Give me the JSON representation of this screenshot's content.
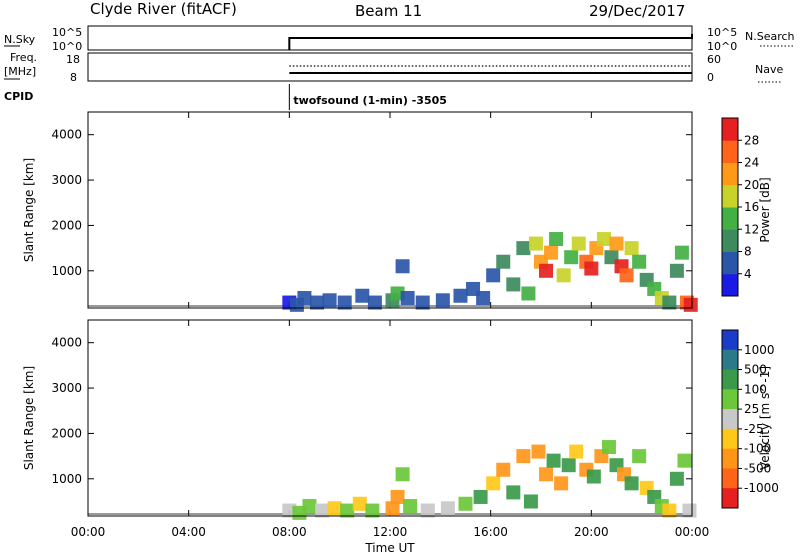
{
  "header": {
    "station": "Clyde River (fitACF)",
    "beam": "Beam 11",
    "date": "29/Dec/2017"
  },
  "summary_panels": {
    "nsky_label": "N.Sky",
    "nsky_ticks": [
      "10^5",
      "10^0"
    ],
    "nsearch_label": "N.Search",
    "nsearch_ticks": [
      "10^5",
      "10^0"
    ],
    "freq_label_1": "Freq.",
    "freq_label_2": "[MHz]",
    "freq_ticks": [
      "18",
      "8"
    ],
    "nave_label": "Nave",
    "nave_ticks": [
      "60",
      "0"
    ],
    "cpid_label": "CPID",
    "cpid_text": "twofsound (1-min) -3505"
  },
  "chart_data": [
    {
      "type": "heatmap",
      "title": "",
      "ylabel": "Slant Range [km]",
      "xlabel": "",
      "ylim": [
        180,
        4500
      ],
      "yticks": [
        "1000",
        "2000",
        "3000",
        "4000"
      ],
      "colorbar": {
        "label": "Power [dB]",
        "ticks": [
          "4",
          "8",
          "12",
          "16",
          "20",
          "24",
          "28"
        ],
        "range": [
          0,
          30
        ],
        "colors": [
          "#1a1ae6",
          "#2a56a8",
          "#3d8a5c",
          "#43b043",
          "#c8d228",
          "#ff9a18",
          "#ff6418",
          "#e62020"
        ]
      },
      "cells": [
        [
          8.0,
          300,
          3
        ],
        [
          8.3,
          250,
          6
        ],
        [
          8.6,
          400,
          5
        ],
        [
          9.1,
          300,
          7
        ],
        [
          9.6,
          350,
          6
        ],
        [
          10.2,
          300,
          5
        ],
        [
          10.9,
          450,
          7
        ],
        [
          11.4,
          300,
          6
        ],
        [
          12.1,
          350,
          10
        ],
        [
          12.3,
          500,
          14
        ],
        [
          12.5,
          1100,
          6
        ],
        [
          12.7,
          400,
          5
        ],
        [
          13.3,
          300,
          6
        ],
        [
          14.1,
          350,
          5
        ],
        [
          14.8,
          450,
          6
        ],
        [
          15.3,
          600,
          7
        ],
        [
          15.7,
          400,
          5
        ],
        [
          16.1,
          900,
          7
        ],
        [
          16.5,
          1200,
          9
        ],
        [
          16.9,
          700,
          10
        ],
        [
          17.3,
          1500,
          8
        ],
        [
          17.5,
          500,
          12
        ],
        [
          17.8,
          1600,
          15
        ],
        [
          18.0,
          1200,
          22
        ],
        [
          18.2,
          1000,
          27
        ],
        [
          18.4,
          1400,
          20
        ],
        [
          18.6,
          1700,
          14
        ],
        [
          18.9,
          900,
          16
        ],
        [
          19.2,
          1300,
          12
        ],
        [
          19.5,
          1600,
          18
        ],
        [
          19.8,
          1200,
          24
        ],
        [
          20.0,
          1050,
          28
        ],
        [
          20.2,
          1500,
          22
        ],
        [
          20.5,
          1700,
          16
        ],
        [
          20.8,
          1300,
          11
        ],
        [
          21.0,
          1600,
          20
        ],
        [
          21.2,
          1100,
          27
        ],
        [
          21.4,
          900,
          24
        ],
        [
          21.6,
          1500,
          17
        ],
        [
          21.9,
          1200,
          12
        ],
        [
          22.2,
          800,
          10
        ],
        [
          22.5,
          600,
          13
        ],
        [
          22.8,
          400,
          18
        ],
        [
          23.1,
          300,
          11
        ],
        [
          23.4,
          1000,
          9
        ],
        [
          23.6,
          1400,
          12
        ],
        [
          23.8,
          300,
          26
        ],
        [
          23.95,
          250,
          28
        ]
      ]
    },
    {
      "type": "heatmap",
      "title": "",
      "ylabel": "Slant Range [km]",
      "xlabel": "Time UT",
      "ylim": [
        180,
        4500
      ],
      "yticks": [
        "1000",
        "2000",
        "3000",
        "4000"
      ],
      "xticks": [
        "00:00",
        "04:00",
        "08:00",
        "12:00",
        "16:00",
        "20:00",
        "00:00"
      ],
      "xlim_hours": [
        0,
        24
      ],
      "colorbar": {
        "label": "Velocity [m s^-1]",
        "ticks": [
          "1000",
          "500",
          "100",
          "25",
          "-25",
          "-100",
          "-500",
          "-1000"
        ],
        "colors": [
          "#1a3cc8",
          "#2a7a8c",
          "#3a9a4a",
          "#6ac83a",
          "#c8c8c8",
          "#ffc818",
          "#ff9618",
          "#ff6418",
          "#e62020"
        ]
      },
      "cells": [
        [
          8.0,
          300,
          20
        ],
        [
          8.4,
          250,
          50
        ],
        [
          8.8,
          400,
          80
        ],
        [
          9.3,
          300,
          20
        ],
        [
          9.8,
          350,
          -30
        ],
        [
          10.3,
          300,
          60
        ],
        [
          10.8,
          450,
          -80
        ],
        [
          11.3,
          300,
          40
        ],
        [
          12.1,
          350,
          -300
        ],
        [
          12.3,
          600,
          -150
        ],
        [
          12.5,
          1100,
          30
        ],
        [
          12.8,
          400,
          70
        ],
        [
          13.5,
          300,
          20
        ],
        [
          14.3,
          350,
          -20
        ],
        [
          15.0,
          450,
          60
        ],
        [
          15.6,
          600,
          200
        ],
        [
          16.1,
          900,
          -100
        ],
        [
          16.5,
          1200,
          -300
        ],
        [
          16.9,
          700,
          300
        ],
        [
          17.3,
          1500,
          -200
        ],
        [
          17.6,
          500,
          400
        ],
        [
          17.9,
          1600,
          -150
        ],
        [
          18.2,
          1100,
          -300
        ],
        [
          18.5,
          1400,
          120
        ],
        [
          18.8,
          900,
          -120
        ],
        [
          19.1,
          1300,
          200
        ],
        [
          19.4,
          1600,
          -90
        ],
        [
          19.8,
          1200,
          -250
        ],
        [
          20.1,
          1050,
          150
        ],
        [
          20.4,
          1500,
          -120
        ],
        [
          20.7,
          1700,
          90
        ],
        [
          21.0,
          1300,
          200
        ],
        [
          21.3,
          1100,
          -200
        ],
        [
          21.6,
          900,
          120
        ],
        [
          21.9,
          1500,
          60
        ],
        [
          22.2,
          800,
          -60
        ],
        [
          22.5,
          600,
          150
        ],
        [
          22.8,
          400,
          30
        ],
        [
          23.1,
          300,
          -40
        ],
        [
          23.4,
          1000,
          180
        ],
        [
          23.7,
          1400,
          40
        ],
        [
          23.9,
          300,
          10
        ]
      ]
    }
  ],
  "scan_data": {
    "coverage_start_hours": 8.0,
    "coverage_end_hours": 24.0
  }
}
